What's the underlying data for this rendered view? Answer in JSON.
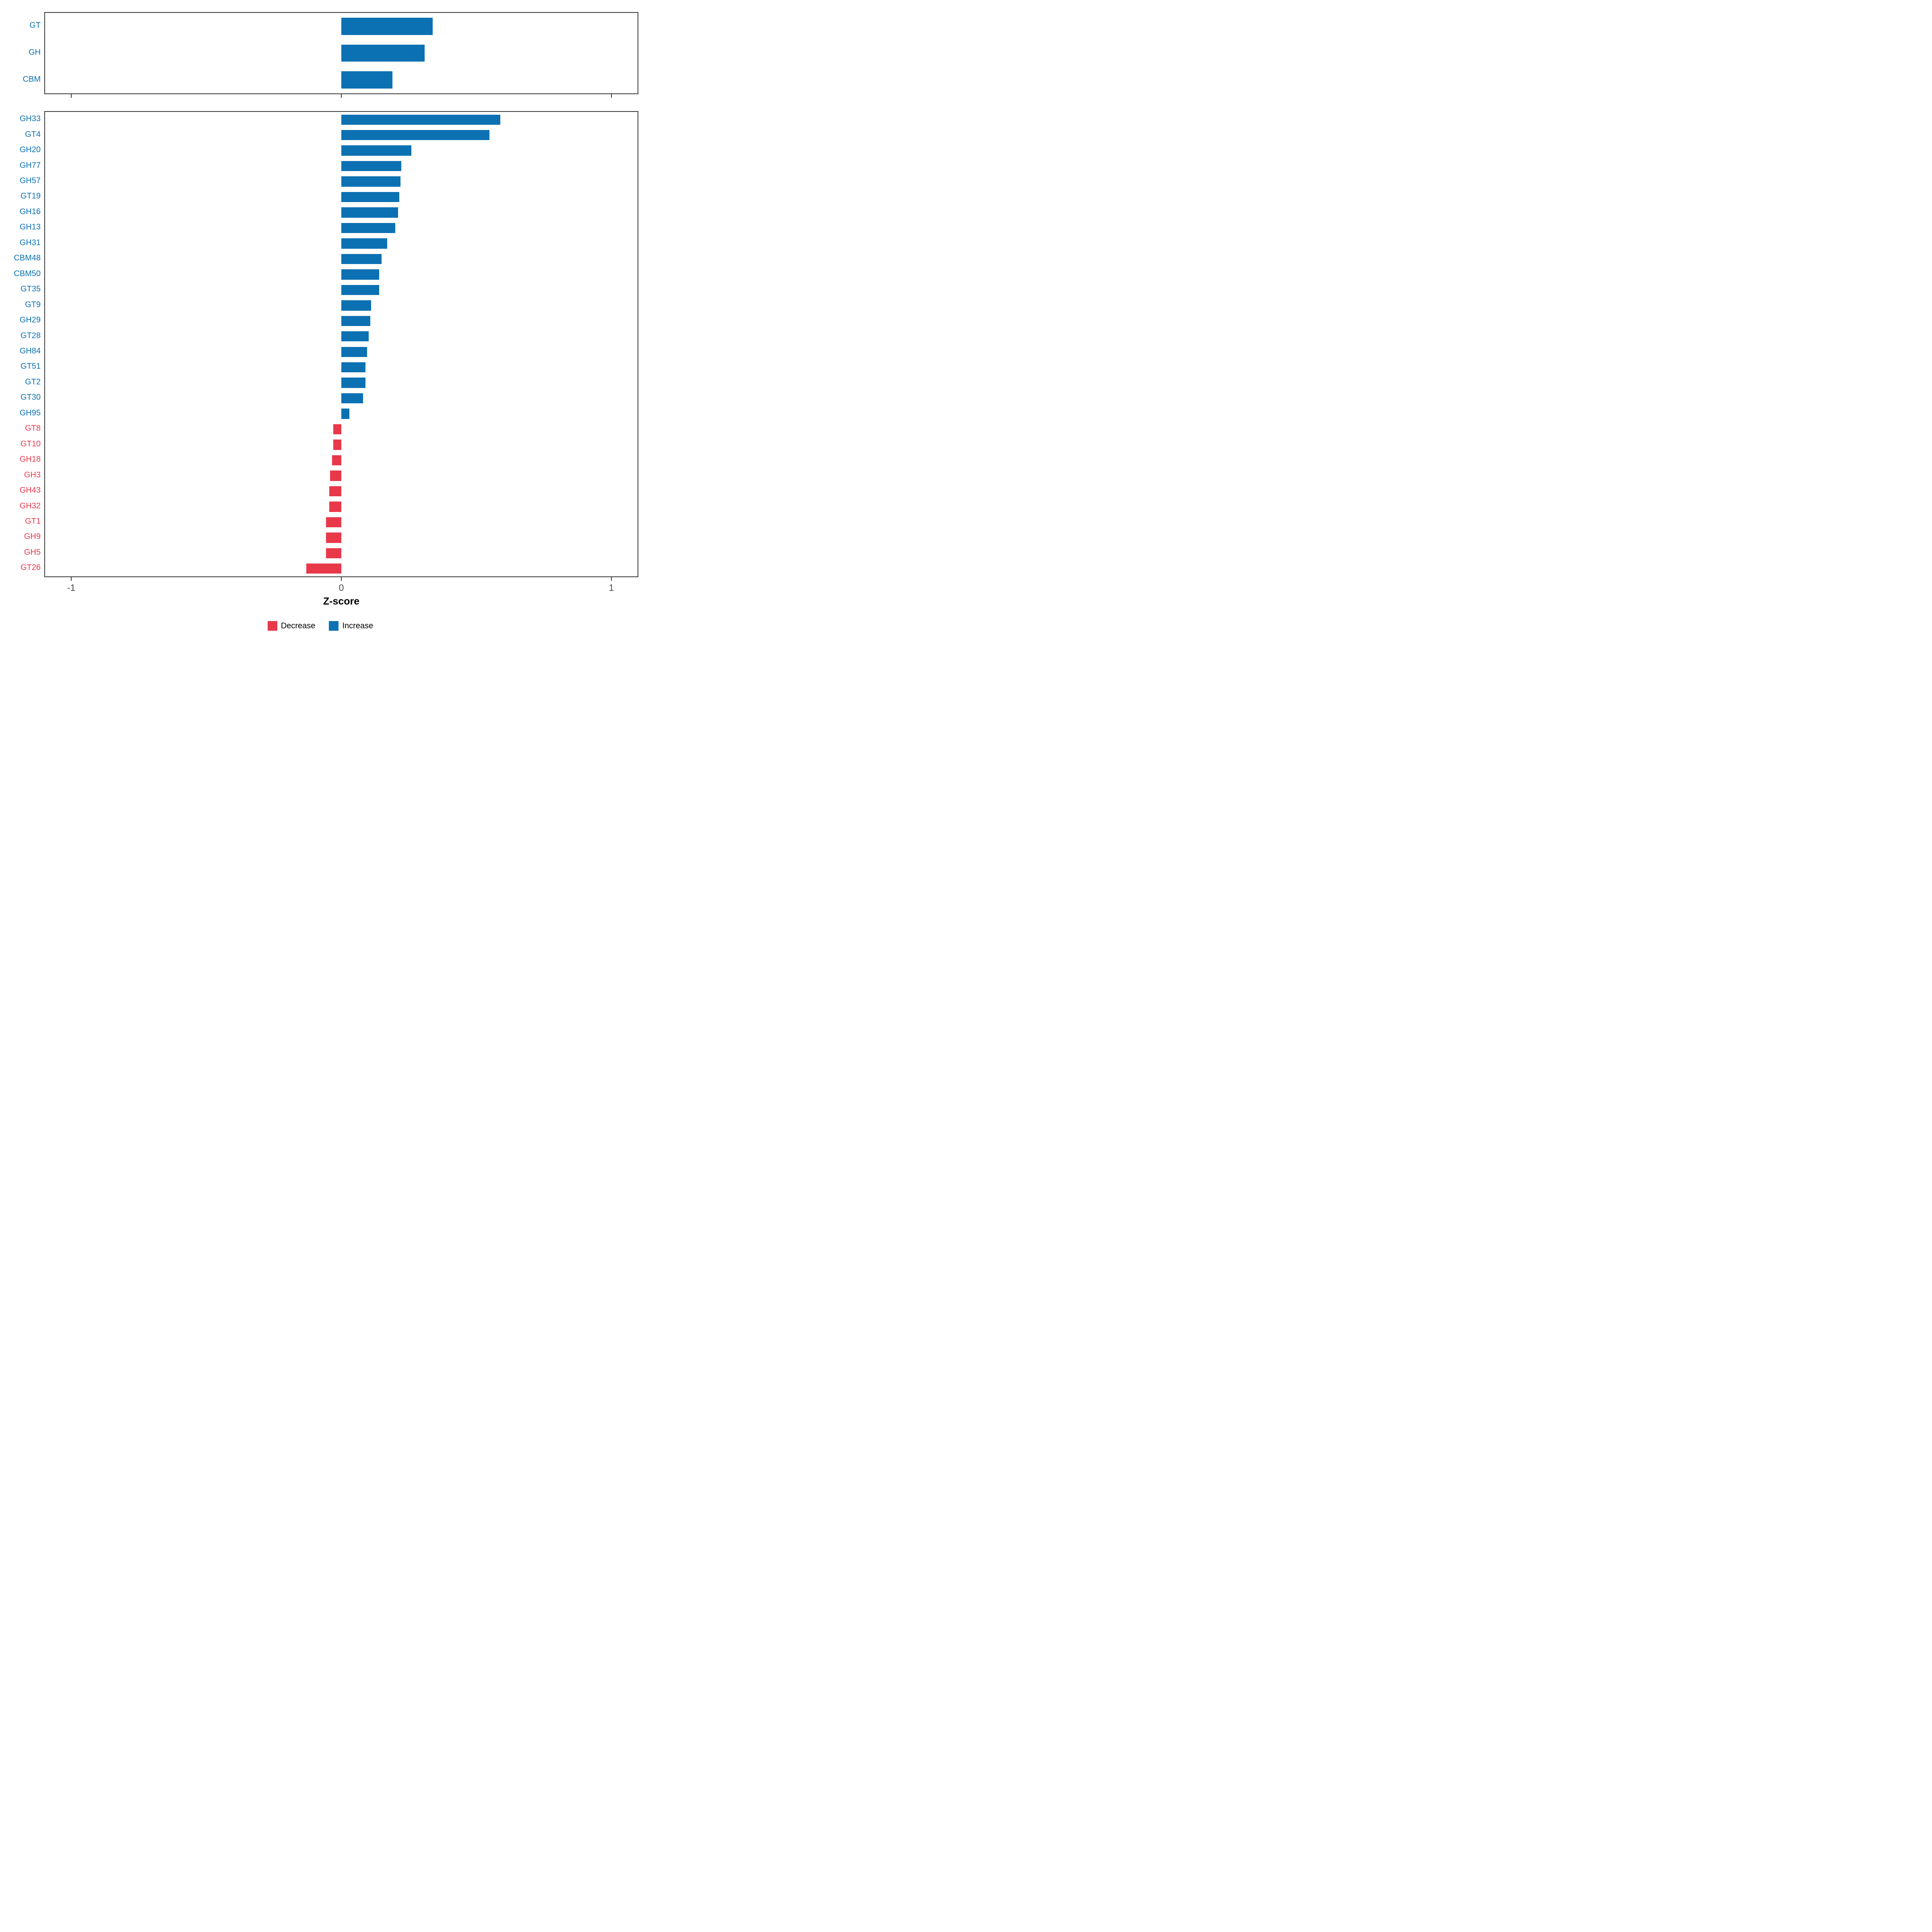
{
  "colors": {
    "increase": "#0C71B3",
    "decrease": "#E8384A",
    "panel_border": "#3a3a3a",
    "tick": "#3a3a3a"
  },
  "axis": {
    "label": "Z-score",
    "ticks": [
      "-1",
      "0",
      "1"
    ],
    "tick_values": [
      -1,
      0,
      1
    ],
    "domain": [
      -1.1,
      1.1
    ],
    "grid": "off"
  },
  "legend": {
    "position": "bottom-center",
    "items": [
      {
        "label": "Decrease",
        "color_key": "decrease"
      },
      {
        "label": "Increase",
        "color_key": "increase"
      }
    ]
  },
  "chart_data": [
    {
      "type": "bar",
      "orientation": "horizontal",
      "panel": "top",
      "title": "",
      "xlabel": "Z-score",
      "ylabel": "",
      "xlim": [
        -1.1,
        1.1
      ],
      "categories": [
        "GT",
        "GH",
        "CBM"
      ],
      "values": [
        0.34,
        0.31,
        0.19
      ]
    },
    {
      "type": "bar",
      "orientation": "horizontal",
      "panel": "bottom",
      "title": "",
      "xlabel": "Z-score",
      "ylabel": "",
      "xlim": [
        -1.1,
        1.1
      ],
      "categories": [
        "GH33",
        "GT4",
        "GH20",
        "GH77",
        "GH57",
        "GT19",
        "GH16",
        "GH13",
        "GH31",
        "CBM48",
        "CBM50",
        "GT35",
        "GT9",
        "GH29",
        "GT28",
        "GH84",
        "GT51",
        "GT2",
        "GT30",
        "GH95",
        "GT8",
        "GT10",
        "GH18",
        "GH3",
        "GH43",
        "GH32",
        "GT1",
        "GH9",
        "GH5",
        "GT26"
      ],
      "values": [
        0.59,
        0.55,
        0.26,
        0.222,
        0.22,
        0.215,
        0.21,
        0.2,
        0.17,
        0.15,
        0.14,
        0.14,
        0.11,
        0.107,
        0.102,
        0.096,
        0.09,
        0.09,
        0.08,
        0.03,
        -0.03,
        -0.03,
        -0.035,
        -0.042,
        -0.045,
        -0.045,
        -0.057,
        -0.057,
        -0.057,
        -0.13
      ]
    }
  ]
}
